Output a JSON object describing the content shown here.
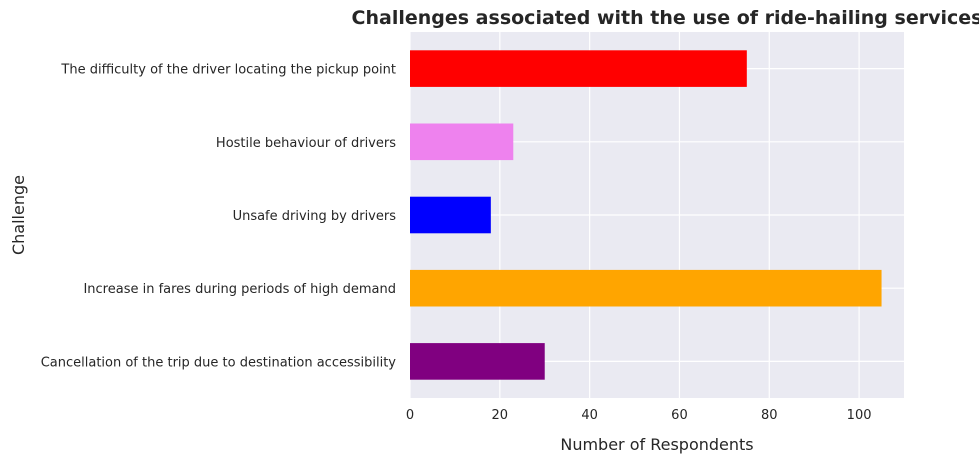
{
  "chart_data": {
    "type": "bar",
    "orientation": "horizontal",
    "title": "Challenges associated with the use of ride-hailing services",
    "xlabel": "Number of Respondents",
    "ylabel": "Challenge",
    "xlim": [
      0,
      110
    ],
    "xticks": [
      0,
      20,
      40,
      60,
      80,
      100
    ],
    "grid": true,
    "categories": [
      "The difficulty of the driver locating the pickup point",
      "Hostile behaviour of drivers",
      "Unsafe driving by drivers",
      "Increase in fares during periods of high demand",
      "Cancellation of the trip due to destination accessibility"
    ],
    "values": [
      75,
      23,
      18,
      105,
      30
    ],
    "colors": [
      "#ff0000",
      "#ee82ee",
      "#0000ff",
      "#ffa500",
      "#800080"
    ],
    "background_color": "#eaeaf2",
    "grid_color": "#ffffff"
  }
}
